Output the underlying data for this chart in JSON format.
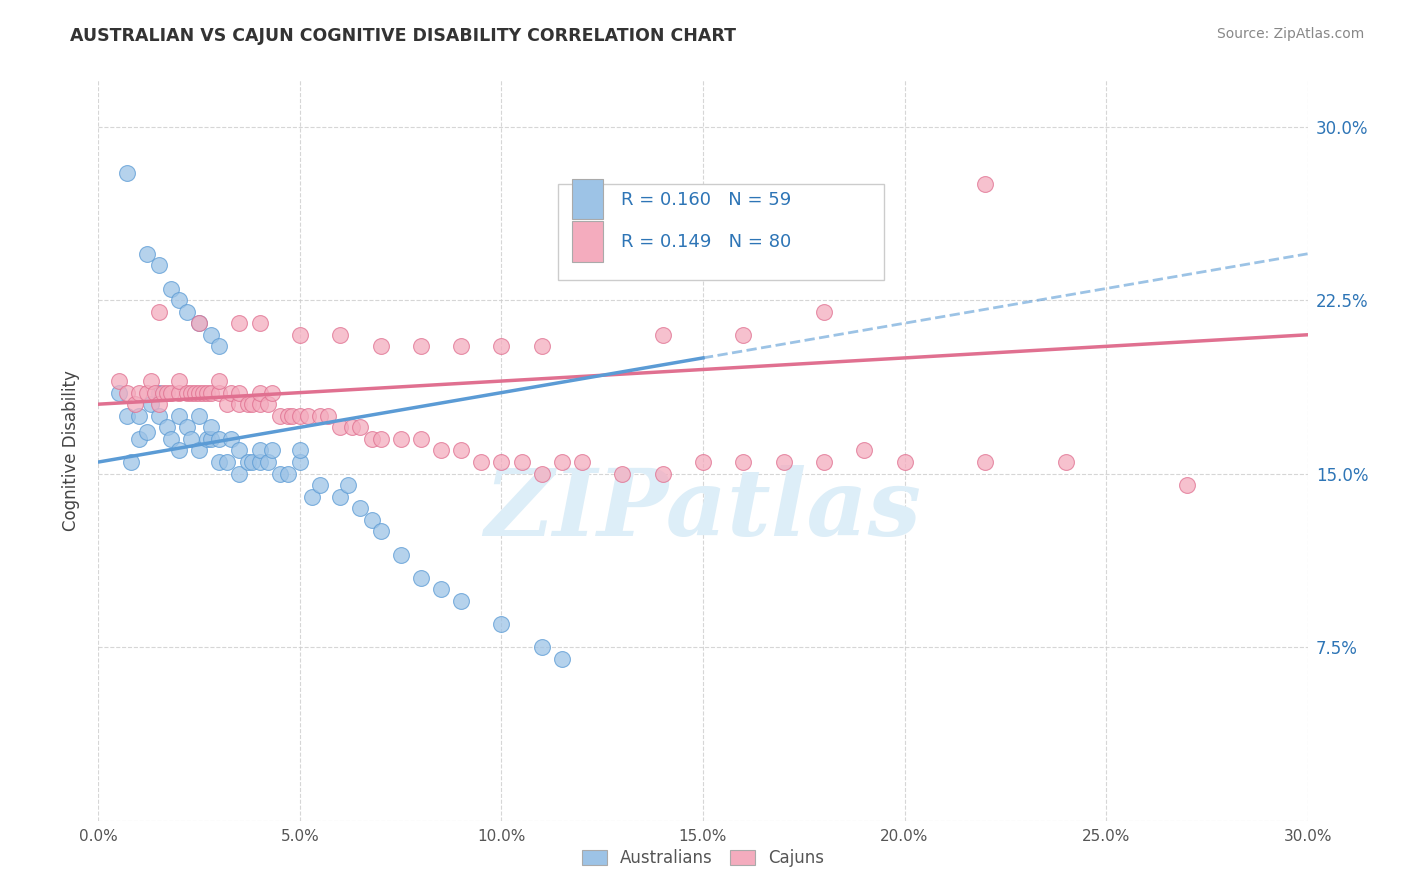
{
  "title": "AUSTRALIAN VS CAJUN COGNITIVE DISABILITY CORRELATION CHART",
  "source": "Source: ZipAtlas.com",
  "ylabel": "Cognitive Disability",
  "x_range": [
    0.0,
    0.3
  ],
  "y_range": [
    0.0,
    0.32
  ],
  "legend_label1": "Australians",
  "legend_label2": "Cajuns",
  "legend_R1_val": "0.160",
  "legend_N1_val": "59",
  "legend_R2_val": "0.149",
  "legend_N2_val": "80",
  "color_blue": "#9DC3E6",
  "color_pink": "#F4ACBE",
  "color_blue_line": "#5B9BD5",
  "color_pink_line": "#E07090",
  "color_blue_text": "#2E75B6",
  "watermark_color": "#DDEEF8",
  "aus_scatter_x": [
    0.005,
    0.007,
    0.008,
    0.01,
    0.01,
    0.012,
    0.013,
    0.015,
    0.015,
    0.017,
    0.018,
    0.02,
    0.02,
    0.022,
    0.023,
    0.025,
    0.025,
    0.027,
    0.028,
    0.028,
    0.03,
    0.03,
    0.032,
    0.033,
    0.035,
    0.035,
    0.037,
    0.038,
    0.04,
    0.04,
    0.042,
    0.043,
    0.045,
    0.047,
    0.05,
    0.05,
    0.053,
    0.055,
    0.06,
    0.062,
    0.065,
    0.068,
    0.07,
    0.075,
    0.08,
    0.085,
    0.09,
    0.1,
    0.11,
    0.115,
    0.007,
    0.012,
    0.015,
    0.018,
    0.02,
    0.022,
    0.025,
    0.028,
    0.03
  ],
  "aus_scatter_y": [
    0.185,
    0.175,
    0.155,
    0.165,
    0.175,
    0.168,
    0.18,
    0.175,
    0.185,
    0.17,
    0.165,
    0.16,
    0.175,
    0.17,
    0.165,
    0.16,
    0.175,
    0.165,
    0.165,
    0.17,
    0.155,
    0.165,
    0.155,
    0.165,
    0.15,
    0.16,
    0.155,
    0.155,
    0.155,
    0.16,
    0.155,
    0.16,
    0.15,
    0.15,
    0.155,
    0.16,
    0.14,
    0.145,
    0.14,
    0.145,
    0.135,
    0.13,
    0.125,
    0.115,
    0.105,
    0.1,
    0.095,
    0.085,
    0.075,
    0.07,
    0.28,
    0.245,
    0.24,
    0.23,
    0.225,
    0.22,
    0.215,
    0.21,
    0.205
  ],
  "caj_scatter_x": [
    0.005,
    0.007,
    0.009,
    0.01,
    0.012,
    0.013,
    0.014,
    0.015,
    0.016,
    0.017,
    0.018,
    0.02,
    0.02,
    0.022,
    0.023,
    0.024,
    0.025,
    0.026,
    0.027,
    0.028,
    0.03,
    0.03,
    0.032,
    0.033,
    0.035,
    0.035,
    0.037,
    0.038,
    0.04,
    0.04,
    0.042,
    0.043,
    0.045,
    0.047,
    0.048,
    0.05,
    0.052,
    0.055,
    0.057,
    0.06,
    0.063,
    0.065,
    0.068,
    0.07,
    0.075,
    0.08,
    0.085,
    0.09,
    0.095,
    0.1,
    0.105,
    0.11,
    0.115,
    0.12,
    0.13,
    0.14,
    0.15,
    0.16,
    0.17,
    0.18,
    0.19,
    0.2,
    0.22,
    0.24,
    0.015,
    0.025,
    0.035,
    0.04,
    0.05,
    0.06,
    0.07,
    0.08,
    0.09,
    0.1,
    0.11,
    0.14,
    0.16,
    0.18,
    0.22,
    0.27
  ],
  "caj_scatter_y": [
    0.19,
    0.185,
    0.18,
    0.185,
    0.185,
    0.19,
    0.185,
    0.18,
    0.185,
    0.185,
    0.185,
    0.185,
    0.19,
    0.185,
    0.185,
    0.185,
    0.185,
    0.185,
    0.185,
    0.185,
    0.185,
    0.19,
    0.18,
    0.185,
    0.18,
    0.185,
    0.18,
    0.18,
    0.18,
    0.185,
    0.18,
    0.185,
    0.175,
    0.175,
    0.175,
    0.175,
    0.175,
    0.175,
    0.175,
    0.17,
    0.17,
    0.17,
    0.165,
    0.165,
    0.165,
    0.165,
    0.16,
    0.16,
    0.155,
    0.155,
    0.155,
    0.15,
    0.155,
    0.155,
    0.15,
    0.15,
    0.155,
    0.155,
    0.155,
    0.155,
    0.16,
    0.155,
    0.155,
    0.155,
    0.22,
    0.215,
    0.215,
    0.215,
    0.21,
    0.21,
    0.205,
    0.205,
    0.205,
    0.205,
    0.205,
    0.21,
    0.21,
    0.22,
    0.275,
    0.145
  ]
}
